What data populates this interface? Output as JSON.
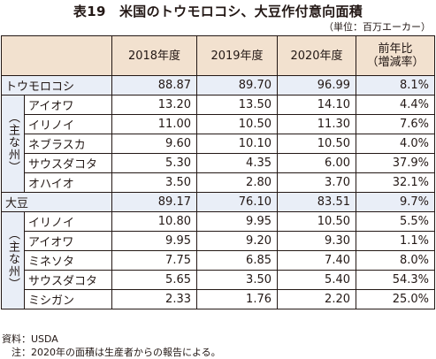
{
  "title": "表19　米国のトウモロコシ、大豆作付意向面積",
  "unit": "（単位：百万エーカー）",
  "header": {
    "columns": [
      "2018年度",
      "2019年度",
      "2020年度",
      "前年比"
    ],
    "change_sub": "（増減率）"
  },
  "group_label": "（主な州）",
  "sections": [
    {
      "name": "トウモロコシ",
      "total": [
        "88.87",
        "89.70",
        "96.99",
        "8.1%"
      ],
      "states": [
        {
          "name": "アイオワ",
          "values": [
            "13.20",
            "13.50",
            "14.10",
            "4.4%"
          ]
        },
        {
          "name": "イリノイ",
          "values": [
            "11.00",
            "10.50",
            "11.30",
            "7.6%"
          ]
        },
        {
          "name": "ネブラスカ",
          "values": [
            "9.60",
            "10.10",
            "10.50",
            "4.0%"
          ]
        },
        {
          "name": "サウスダコタ",
          "values": [
            "5.30",
            "4.35",
            "6.00",
            "37.9%"
          ]
        },
        {
          "name": "オハイオ",
          "values": [
            "3.50",
            "2.80",
            "3.70",
            "32.1%"
          ]
        }
      ]
    },
    {
      "name": "大豆",
      "total": [
        "89.17",
        "76.10",
        "83.51",
        "9.7%"
      ],
      "states": [
        {
          "name": "イリノイ",
          "values": [
            "10.80",
            "9.95",
            "10.50",
            "5.5%"
          ]
        },
        {
          "name": "アイオワ",
          "values": [
            "9.95",
            "9.20",
            "9.30",
            "1.1%"
          ]
        },
        {
          "name": "ミネソタ",
          "values": [
            "7.75",
            "6.85",
            "7.40",
            "8.0%"
          ]
        },
        {
          "name": "サウスダコタ",
          "values": [
            "5.65",
            "3.50",
            "5.40",
            "54.3%"
          ]
        },
        {
          "name": "ミシガン",
          "values": [
            "2.33",
            "1.76",
            "2.20",
            "25.0%"
          ]
        }
      ]
    }
  ],
  "footnotes": {
    "source": "資料：USDA",
    "note": "　注：2020年の面積は生産者からの報告による。"
  }
}
